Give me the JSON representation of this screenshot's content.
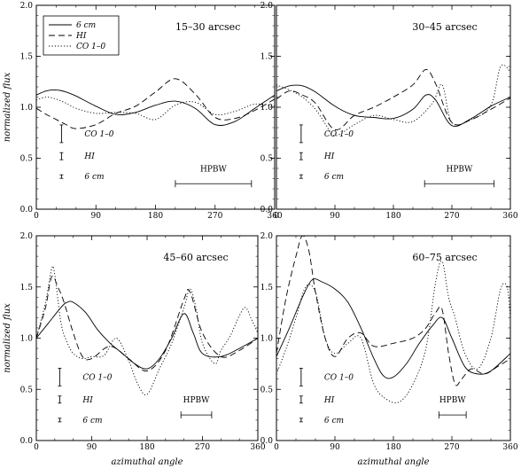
{
  "chart_data": [
    {
      "type": "line",
      "title": "15–30 arcsec",
      "xlabel": "",
      "ylabel": "normalized flux",
      "xlim": [
        0,
        360
      ],
      "ylim": [
        0.0,
        2.0
      ],
      "xticks": [
        "0",
        "90",
        "180",
        "270",
        "360"
      ],
      "yticks": [
        "0.0",
        "0.5",
        "1.0",
        "1.5",
        "2.0"
      ],
      "legend": {
        "placement": "top-left",
        "entries": [
          "6 cm",
          "HI",
          "CO 1–0"
        ]
      },
      "errorbar_labels": [
        "CO 1–0",
        "HI",
        "6 cm"
      ],
      "hpbw_label": "HPBW",
      "hpbw_range": [
        210,
        325
      ],
      "series": [
        {
          "name": "6 cm",
          "style": "solid",
          "x": [
            0,
            15,
            30,
            45,
            60,
            90,
            120,
            150,
            180,
            210,
            240,
            270,
            300,
            330,
            360
          ],
          "y": [
            1.12,
            1.16,
            1.17,
            1.15,
            1.11,
            1.01,
            0.93,
            0.95,
            1.02,
            1.06,
            0.99,
            0.83,
            0.86,
            0.99,
            1.12
          ]
        },
        {
          "name": "HI",
          "style": "dashed",
          "x": [
            0,
            15,
            30,
            45,
            60,
            90,
            120,
            150,
            180,
            210,
            240,
            270,
            300,
            330,
            360
          ],
          "y": [
            0.99,
            0.93,
            0.88,
            0.83,
            0.79,
            0.83,
            0.94,
            1.01,
            1.15,
            1.28,
            1.13,
            0.9,
            0.89,
            0.97,
            1.08
          ]
        },
        {
          "name": "CO 1–0",
          "style": "dotted",
          "x": [
            0,
            15,
            30,
            45,
            60,
            90,
            120,
            150,
            180,
            210,
            240,
            270,
            300,
            330,
            360
          ],
          "y": [
            1.07,
            1.1,
            1.08,
            1.04,
            0.99,
            0.94,
            0.95,
            0.94,
            0.88,
            1.02,
            1.05,
            0.93,
            0.96,
            1.03,
            1.01
          ]
        }
      ]
    },
    {
      "type": "line",
      "title": "30–45 arcsec",
      "xlabel": "",
      "ylabel": "",
      "xlim": [
        0,
        360
      ],
      "ylim": [
        0.0,
        2.0
      ],
      "xticks": [
        "0",
        "90",
        "180",
        "270",
        "360"
      ],
      "yticks": [
        "0.0",
        "0.5",
        "1.0",
        "1.5",
        "2.0"
      ],
      "errorbar_labels": [
        "CO 1–0",
        "HI",
        "6 cm"
      ],
      "hpbw_label": "HPBW",
      "hpbw_range": [
        228,
        335
      ],
      "series": [
        {
          "name": "6 cm",
          "style": "solid",
          "x": [
            0,
            20,
            40,
            60,
            90,
            120,
            150,
            180,
            210,
            230,
            245,
            270,
            300,
            330,
            360
          ],
          "y": [
            1.16,
            1.21,
            1.21,
            1.15,
            1.01,
            0.92,
            0.9,
            0.89,
            0.98,
            1.12,
            1.07,
            0.82,
            0.89,
            1.01,
            1.1
          ]
        },
        {
          "name": "HI",
          "style": "dashed",
          "x": [
            0,
            20,
            40,
            60,
            90,
            120,
            150,
            180,
            210,
            230,
            245,
            270,
            300,
            330,
            360
          ],
          "y": [
            1.08,
            1.16,
            1.12,
            1.04,
            0.78,
            0.92,
            1.0,
            1.1,
            1.22,
            1.37,
            1.23,
            0.85,
            0.88,
            0.98,
            1.09
          ]
        },
        {
          "name": "CO 1–0",
          "style": "dotted",
          "x": [
            0,
            20,
            40,
            60,
            75,
            90,
            120,
            150,
            180,
            210,
            240,
            255,
            270,
            300,
            330,
            345,
            360
          ],
          "y": [
            1.22,
            1.17,
            1.1,
            0.98,
            0.84,
            0.72,
            0.83,
            0.92,
            0.88,
            0.86,
            1.04,
            1.22,
            0.85,
            0.88,
            1.02,
            1.4,
            1.35
          ]
        }
      ]
    },
    {
      "type": "line",
      "title": "45–60 arcsec",
      "xlabel": "azimuthal angle",
      "ylabel": "normalized flux",
      "xlim": [
        0,
        360
      ],
      "ylim": [
        0.0,
        2.0
      ],
      "xticks": [
        "0",
        "90",
        "180",
        "270",
        "360"
      ],
      "yticks": [
        "0.0",
        "0.5",
        "1.0",
        "1.5",
        "2.0"
      ],
      "errorbar_labels": [
        "CO 1–0",
        "HI",
        "6 cm"
      ],
      "hpbw_label": "HPBW",
      "hpbw_range": [
        235,
        285
      ],
      "series": [
        {
          "name": "6 cm",
          "style": "solid",
          "x": [
            0,
            20,
            40,
            50,
            60,
            80,
            100,
            120,
            140,
            160,
            180,
            200,
            220,
            240,
            255,
            270,
            300,
            330,
            360
          ],
          "y": [
            1.0,
            1.15,
            1.3,
            1.35,
            1.35,
            1.25,
            1.08,
            0.95,
            0.85,
            0.75,
            0.7,
            0.8,
            1.0,
            1.24,
            1.05,
            0.85,
            0.82,
            0.9,
            1.0
          ]
        },
        {
          "name": "HI",
          "style": "dashed",
          "x": [
            0,
            15,
            25,
            35,
            45,
            60,
            75,
            90,
            120,
            150,
            180,
            210,
            240,
            250,
            270,
            300,
            330,
            360
          ],
          "y": [
            1.0,
            1.3,
            1.6,
            1.5,
            1.35,
            1.05,
            0.82,
            0.8,
            0.92,
            0.8,
            0.68,
            0.88,
            1.38,
            1.45,
            1.05,
            0.82,
            0.88,
            1.0
          ]
        },
        {
          "name": "CO 1–0",
          "style": "dotted",
          "x": [
            0,
            15,
            25,
            30,
            40,
            50,
            60,
            75,
            90,
            110,
            130,
            150,
            165,
            180,
            200,
            220,
            240,
            250,
            260,
            270,
            290,
            300,
            315,
            330,
            340,
            350,
            360
          ],
          "y": [
            1.0,
            1.35,
            1.68,
            1.62,
            1.15,
            0.96,
            0.85,
            0.8,
            0.82,
            0.83,
            1.0,
            0.78,
            0.55,
            0.45,
            0.7,
            0.95,
            1.3,
            1.48,
            1.28,
            0.95,
            0.75,
            0.88,
            1.02,
            1.22,
            1.3,
            1.18,
            1.05
          ]
        }
      ]
    },
    {
      "type": "line",
      "title": "60–75 arcsec",
      "xlabel": "azimuthal angle",
      "ylabel": "",
      "xlim": [
        0,
        360
      ],
      "ylim": [
        0.0,
        2.0
      ],
      "xticks": [
        "0",
        "90",
        "180",
        "270",
        "360"
      ],
      "yticks": [
        "0.0",
        "0.5",
        "1.0",
        "1.5",
        "2.0"
      ],
      "errorbar_labels": [
        "CO 1–0",
        "HI",
        "6 cm"
      ],
      "hpbw_label": "HPBW",
      "hpbw_range": [
        250,
        292
      ],
      "series": [
        {
          "name": "6 cm",
          "style": "solid",
          "x": [
            0,
            20,
            40,
            55,
            70,
            90,
            110,
            130,
            150,
            165,
            180,
            200,
            220,
            240,
            255,
            270,
            290,
            310,
            330,
            360
          ],
          "y": [
            0.82,
            1.1,
            1.4,
            1.57,
            1.55,
            1.48,
            1.35,
            1.1,
            0.8,
            0.63,
            0.62,
            0.75,
            0.95,
            1.12,
            1.2,
            1.0,
            0.72,
            0.65,
            0.68,
            0.85
          ]
        },
        {
          "name": "HI",
          "style": "dashed",
          "x": [
            0,
            15,
            30,
            40,
            50,
            60,
            75,
            90,
            110,
            130,
            150,
            180,
            210,
            230,
            245,
            255,
            265,
            275,
            285,
            300,
            320,
            340,
            360
          ],
          "y": [
            0.85,
            1.4,
            1.8,
            2.0,
            1.85,
            1.45,
            1.0,
            0.82,
            1.0,
            1.05,
            0.92,
            0.95,
            1.0,
            1.1,
            1.25,
            1.28,
            0.85,
            0.55,
            0.6,
            0.7,
            0.65,
            0.72,
            0.8
          ]
        },
        {
          "name": "CO 1–0",
          "style": "dotted",
          "x": [
            0,
            15,
            30,
            45,
            60,
            75,
            90,
            110,
            130,
            150,
            170,
            190,
            210,
            230,
            245,
            255,
            265,
            275,
            290,
            310,
            330,
            345,
            355,
            360
          ],
          "y": [
            0.65,
            0.9,
            1.2,
            1.5,
            1.45,
            1.0,
            0.85,
            0.95,
            1.0,
            0.55,
            0.4,
            0.38,
            0.55,
            0.9,
            1.55,
            1.75,
            1.4,
            1.2,
            0.85,
            0.7,
            1.0,
            1.48,
            1.5,
            1.2
          ]
        }
      ]
    }
  ]
}
